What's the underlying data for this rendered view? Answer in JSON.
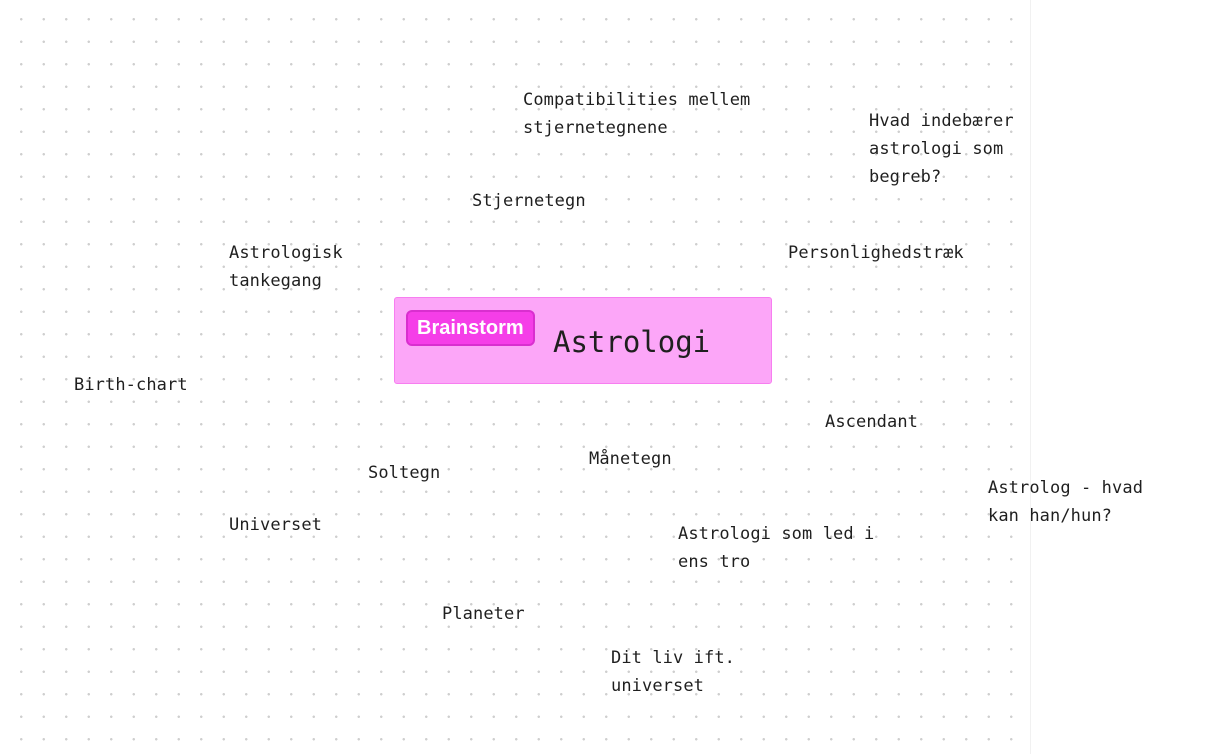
{
  "central": {
    "tag": "Brainstorm",
    "title": "Astrologi"
  },
  "notes": {
    "compatibilities": "Compatibilities mellem\nstjernetegnene",
    "hvad_indebaerer": "Hvad indebærer\nastrologi som\nbegreb?",
    "stjernetegn": "Stjernetegn",
    "astrologisk_tankegang": "Astrologisk\ntankegang",
    "personlighedstraek": "Personlighedstræk",
    "birth_chart": "Birth-chart",
    "ascendant": "Ascendant",
    "manetegn": "Månetegn",
    "soltegn": "Soltegn",
    "astrolog_hvad": "Astrolog - hvad\nkan han/hun?",
    "universet": "Universet",
    "astrologi_led": "Astrologi som led i\nens tro",
    "planeter": "Planeter",
    "dit_liv": "Dit liv ift.\nuniverset"
  }
}
